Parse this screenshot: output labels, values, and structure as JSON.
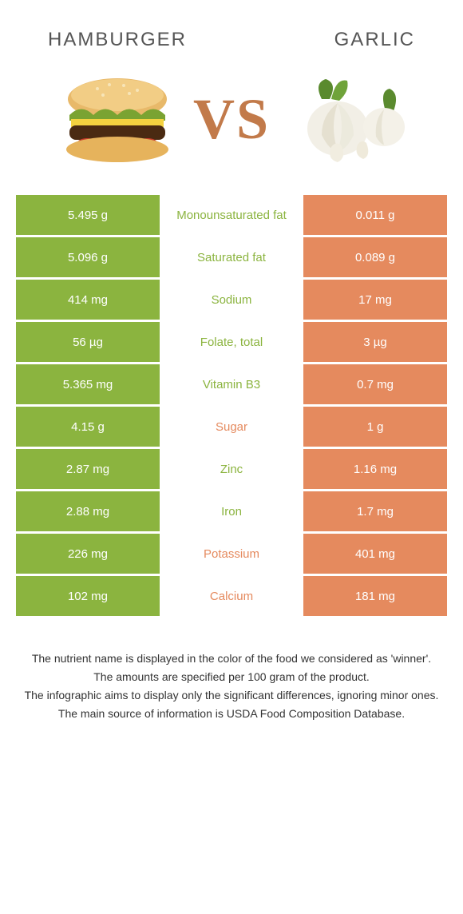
{
  "header": {
    "left_title": "HAMBURGER",
    "right_title": "GARLIC"
  },
  "vs": {
    "label": "VS"
  },
  "colors": {
    "left": "#8bb43f",
    "right": "#e58a5e",
    "mid_text_left": "#8bb43f",
    "mid_text_right": "#e58a5e",
    "title_text": "#555555",
    "vs_text": "#c27a4a",
    "footnote_text": "#333333",
    "background": "#ffffff"
  },
  "table": {
    "rows": [
      {
        "left": "5.495 g",
        "mid": "Monounsaturated fat",
        "right": "0.011 g",
        "winner": "left"
      },
      {
        "left": "5.096 g",
        "mid": "Saturated fat",
        "right": "0.089 g",
        "winner": "left"
      },
      {
        "left": "414 mg",
        "mid": "Sodium",
        "right": "17 mg",
        "winner": "left"
      },
      {
        "left": "56 µg",
        "mid": "Folate, total",
        "right": "3 µg",
        "winner": "left"
      },
      {
        "left": "5.365 mg",
        "mid": "Vitamin B3",
        "right": "0.7 mg",
        "winner": "left"
      },
      {
        "left": "4.15 g",
        "mid": "Sugar",
        "right": "1 g",
        "winner": "right"
      },
      {
        "left": "2.87 mg",
        "mid": "Zinc",
        "right": "1.16 mg",
        "winner": "left"
      },
      {
        "left": "2.88 mg",
        "mid": "Iron",
        "right": "1.7 mg",
        "winner": "left"
      },
      {
        "left": "226 mg",
        "mid": "Potassium",
        "right": "401 mg",
        "winner": "right"
      },
      {
        "left": "102 mg",
        "mid": "Calcium",
        "right": "181 mg",
        "winner": "right"
      }
    ]
  },
  "footnotes": [
    "The nutrient name is displayed in the color of the food we considered as 'winner'.",
    "The amounts are specified per 100 gram of the product.",
    "The infographic aims to display only the significant differences, ignoring minor ones.",
    "The main source of information is USDA Food Composition Database."
  ]
}
